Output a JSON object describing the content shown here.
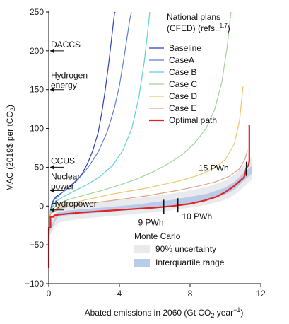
{
  "chart_data": {
    "type": "line",
    "title": "",
    "xlabel": "Abated emissions in 2060 (Gt CO",
    "xlabel_sub": "2",
    "xlabel_tail": " year",
    "xlabel_sup": "−1",
    "xlabel_close": ")",
    "ylabel": "MAC (2019$ per tCO",
    "ylabel_sub": "2",
    "ylabel_close": ")",
    "xlim": [
      0,
      12
    ],
    "ylim": [
      -100,
      250
    ],
    "xticks": [
      0,
      4,
      8,
      12
    ],
    "xtick_labels": [
      "0",
      "4",
      "8",
      "12"
    ],
    "yticks": [
      -100,
      -50,
      0,
      50,
      100,
      150,
      200,
      250
    ],
    "ytick_labels": [
      "−100",
      "−50",
      "0",
      "50",
      "100",
      "150",
      "200",
      "250"
    ],
    "grid": false,
    "legend_placement": "upper-right",
    "national_plans_label": "National plans",
    "national_plans_label2": "(CFED) (refs. ",
    "national_plans_refs": "1,7",
    "national_plans_close": ")",
    "series": [
      {
        "name": "Baseline",
        "color": "#2c3fbf",
        "width": 1.2,
        "x": [
          0,
          0.05,
          0.1,
          0.2,
          0.4,
          0.8,
          1.2,
          1.6,
          1.9,
          2.2,
          2.5,
          2.8,
          3.0,
          3.2,
          3.4,
          3.55,
          3.65,
          3.72,
          3.76
        ],
        "y": [
          -45,
          -20,
          -5,
          5,
          12,
          18,
          25,
          33,
          42,
          55,
          72,
          95,
          120,
          150,
          185,
          215,
          235,
          248,
          250
        ]
      },
      {
        "name": "CaseA",
        "color": "#5b7fd6",
        "width": 1.2,
        "x": [
          0,
          0.1,
          0.3,
          0.7,
          1.2,
          1.8,
          2.3,
          2.8,
          3.3,
          3.7,
          4.0,
          4.25,
          4.45,
          4.6,
          4.68
        ],
        "y": [
          -40,
          -5,
          8,
          16,
          26,
          38,
          52,
          70,
          95,
          125,
          155,
          190,
          220,
          242,
          250
        ]
      },
      {
        "name": "Case B",
        "color": "#5fd0d8",
        "width": 1.2,
        "x": [
          0,
          0.1,
          0.4,
          0.9,
          1.5,
          2.2,
          2.9,
          3.6,
          4.2,
          4.7,
          5.1,
          5.4,
          5.6,
          5.72
        ],
        "y": [
          -40,
          -6,
          6,
          13,
          20,
          28,
          38,
          52,
          72,
          100,
          140,
          185,
          225,
          250
        ]
      },
      {
        "name": "Case C",
        "color": "#9ed49a",
        "width": 1.2,
        "x": [
          0,
          0.1,
          0.5,
          1.2,
          2.0,
          3.0,
          4.0,
          5.0,
          6.0,
          6.8,
          7.6,
          8.3,
          8.9,
          9.4,
          9.8,
          10.1,
          10.25,
          10.32
        ],
        "y": [
          -40,
          -8,
          3,
          9,
          14,
          20,
          27,
          35,
          45,
          55,
          67,
          82,
          100,
          125,
          160,
          205,
          238,
          250
        ]
      },
      {
        "name": "Case D",
        "color": "#f2c46b",
        "width": 1.2,
        "x": [
          0,
          0.1,
          0.6,
          1.5,
          2.5,
          3.5,
          4.5,
          5.5,
          6.5,
          7.5,
          8.5,
          9.3,
          10.0,
          10.5,
          10.8,
          11.0
        ],
        "y": [
          -40,
          -9,
          0,
          5,
          10,
          15,
          19,
          23,
          28,
          33,
          40,
          48,
          60,
          80,
          110,
          155
        ]
      },
      {
        "name": "Case E",
        "color": "#e0a487",
        "width": 1.2,
        "x": [
          0,
          0.1,
          0.6,
          1.5,
          2.5,
          3.5,
          4.5,
          5.5,
          6.5,
          7.5,
          8.5,
          9.4,
          10.2,
          10.8,
          11.1,
          11.25
        ],
        "y": [
          -40,
          -10,
          -3,
          1,
          4,
          7,
          10,
          13,
          17,
          21,
          26,
          31,
          38,
          48,
          60,
          72
        ]
      },
      {
        "name": "Optimal path",
        "color": "#e32222",
        "width": 2.2,
        "x": [
          0,
          0,
          0.1,
          0.1,
          0.3,
          0.3,
          0.6,
          1.0,
          1.5,
          2.0,
          3.0,
          4.0,
          5.0,
          6.0,
          7.0,
          8.0,
          8.8,
          9.5,
          10.0,
          10.5,
          10.9,
          11.05,
          11.1,
          11.15,
          11.2,
          11.3,
          11.35,
          11.35
        ],
        "y": [
          -80,
          -28,
          -28,
          -14,
          -14,
          -12,
          -11,
          -10,
          -9,
          -8,
          -6.5,
          -5,
          -3.5,
          -2,
          0,
          3,
          7,
          12,
          18,
          26,
          34,
          37,
          40,
          46,
          50,
          52,
          58,
          105
        ]
      }
    ],
    "uncertainty": {
      "x": [
        0,
        0.5,
        1,
        2,
        3,
        4,
        5,
        6,
        7,
        8,
        9,
        10,
        10.5,
        11,
        11.5
      ],
      "p5": [
        -40,
        -22,
        -19,
        -16,
        -14,
        -12,
        -10,
        -8,
        -5,
        -2,
        2,
        8,
        14,
        24,
        34
      ],
      "p95": [
        -30,
        0,
        2,
        4,
        6,
        8,
        10,
        13,
        16,
        20,
        25,
        33,
        40,
        52,
        64
      ],
      "p25": [
        -35,
        -14,
        -12,
        -10,
        -8,
        -6,
        -4,
        -2,
        1,
        4,
        8,
        15,
        21,
        32,
        42
      ],
      "p75": [
        -33,
        -8,
        -6,
        -4,
        -2,
        0,
        2,
        5,
        8,
        12,
        16,
        24,
        31,
        42,
        52
      ]
    },
    "markers": [
      {
        "label": "9 PWh",
        "x": 6.5,
        "y": -1
      },
      {
        "label": "10 PWh",
        "x": 7.3,
        "y": 1
      },
      {
        "label": "15 PWh",
        "x": 11.2,
        "y": 48
      }
    ],
    "annotations": [
      {
        "label": "DACCS",
        "y": 200
      },
      {
        "label": "Hydrogen",
        "label2": "energy",
        "y": 150
      },
      {
        "label": "CCUS",
        "y": 50
      },
      {
        "label": "Nuclear",
        "label2": "power",
        "y": 20
      },
      {
        "label": "Hydropower",
        "y": -5
      }
    ],
    "monte_carlo": {
      "title": "Monte Carlo",
      "band90_label": "90% uncertainty",
      "iqr_label": "Interquartile range",
      "band90_color": "#e8eaee",
      "iqr_color": "#b9cbe8"
    }
  }
}
